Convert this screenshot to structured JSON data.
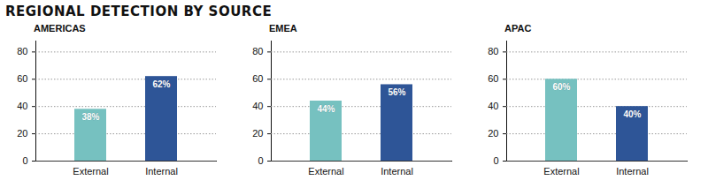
{
  "title": "REGIONAL DETECTION BY SOURCE",
  "chart_data": [
    {
      "type": "bar",
      "title": "AMERICAS",
      "categories": [
        "External",
        "Internal"
      ],
      "values": [
        38,
        62
      ],
      "value_labels": [
        "38%",
        "62%"
      ],
      "colors": [
        "#76c1c0",
        "#2e5597"
      ],
      "ylim": [
        0,
        88
      ],
      "yticks": [
        0,
        20,
        40,
        60,
        80
      ],
      "grid": true,
      "data_labels": true
    },
    {
      "type": "bar",
      "title": "EMEA",
      "categories": [
        "External",
        "Internal"
      ],
      "values": [
        44,
        56
      ],
      "value_labels": [
        "44%",
        "56%"
      ],
      "colors": [
        "#76c1c0",
        "#2e5597"
      ],
      "ylim": [
        0,
        88
      ],
      "yticks": [
        0,
        20,
        40,
        60,
        80
      ],
      "grid": true,
      "data_labels": true
    },
    {
      "type": "bar",
      "title": "APAC",
      "categories": [
        "External",
        "Internal"
      ],
      "values": [
        60,
        40
      ],
      "value_labels": [
        "60%",
        "40%"
      ],
      "colors": [
        "#76c1c0",
        "#2e5597"
      ],
      "ylim": [
        0,
        88
      ],
      "yticks": [
        0,
        20,
        40,
        60,
        80
      ],
      "grid": true,
      "data_labels": true
    }
  ]
}
